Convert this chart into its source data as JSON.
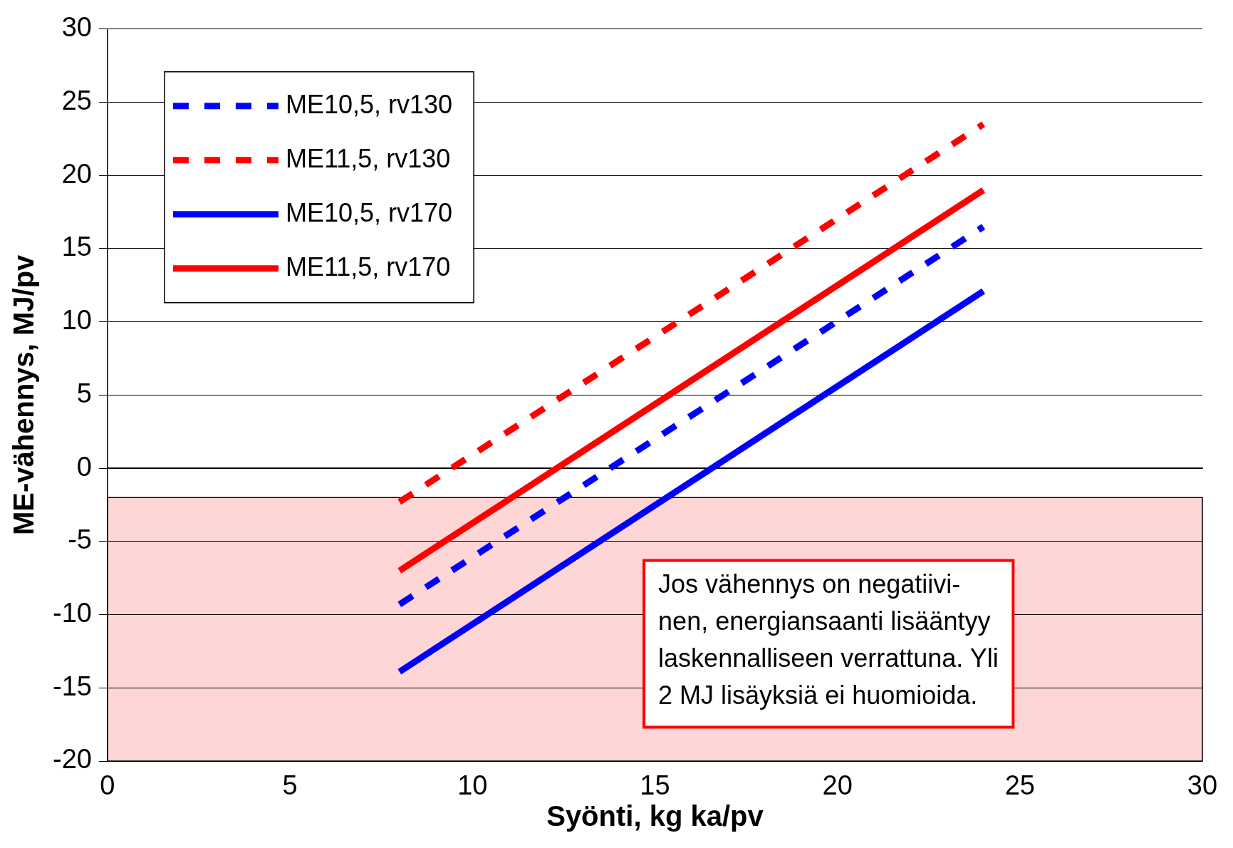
{
  "chart_data": {
    "type": "line",
    "xlabel": "Syönti, kg ka/pv",
    "ylabel": "ME-vähennys, MJ/pv",
    "x": [
      8,
      24
    ],
    "series": [
      {
        "name": "ME10,5, rv130",
        "color": "#0000ff",
        "values": [
          -9.3,
          16.5
        ],
        "line_style": "dashed"
      },
      {
        "name": "ME11,5, rv130",
        "color": "#ff0000",
        "values": [
          -2.3,
          23.5
        ],
        "line_style": "dashed"
      },
      {
        "name": "ME10,5, rv170",
        "color": "#0000ff",
        "values": [
          -13.9,
          12.1
        ],
        "line_style": "solid"
      },
      {
        "name": "ME11,5, rv170",
        "color": "#ff0000",
        "values": [
          -7,
          19
        ],
        "line_style": "solid"
      }
    ],
    "xlim": [
      0,
      30
    ],
    "xticks": [
      0,
      5,
      10,
      15,
      20,
      25,
      30
    ],
    "ylim": [
      -20,
      30
    ],
    "yticks": [
      -20,
      -15,
      -10,
      -5,
      0,
      5,
      10,
      15,
      20,
      25,
      30
    ],
    "bands": [
      {
        "axis": "y",
        "from": -20,
        "to": -2,
        "color": "#ffd6d6"
      }
    ],
    "annotations": [
      "Jos vähennys on negatiivi-\nnen, energiansaanti lisääntyy\nlaskennalliseen verrattuna. Yli\n2 MJ lisäyksiä ei huomioida."
    ],
    "grid": "y",
    "legend": "top left",
    "marker": "none"
  }
}
